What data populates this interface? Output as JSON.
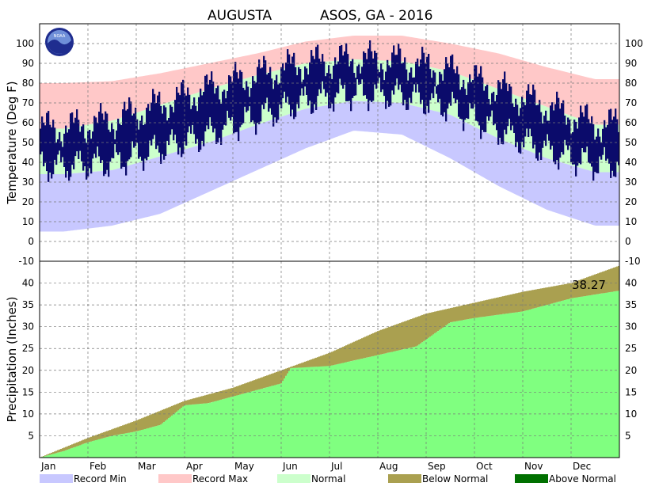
{
  "chart_data": [
    {
      "type": "area",
      "title_station": "AUGUSTA",
      "title_network": "ASOS, GA - 2016",
      "ylabel": "Temperature (Deg F)",
      "ylim": [
        -10,
        110
      ],
      "yticks": [
        -10,
        0,
        10,
        20,
        30,
        40,
        50,
        60,
        70,
        80,
        90,
        100
      ],
      "months": [
        "Jan",
        "Feb",
        "Mar",
        "Apr",
        "May",
        "Jun",
        "Jul",
        "Aug",
        "Sep",
        "Oct",
        "Nov",
        "Dec"
      ],
      "series": [
        {
          "name": "Record Max",
          "color": "#ffc8c8",
          "values": [
            80,
            81,
            85,
            90,
            95,
            101,
            104,
            104,
            100,
            95,
            88,
            82
          ]
        },
        {
          "name": "Normal",
          "color": "#ccffcc",
          "high": [
            57,
            61,
            69,
            77,
            84,
            90,
            92,
            91,
            86,
            77,
            68,
            59
          ],
          "low": [
            34,
            36,
            43,
            50,
            59,
            67,
            71,
            70,
            64,
            52,
            42,
            35
          ]
        },
        {
          "name": "Record Min",
          "color": "#c8c8ff",
          "values": [
            5,
            8,
            14,
            25,
            36,
            47,
            56,
            54,
            42,
            28,
            16,
            8
          ]
        }
      ],
      "observed_color": "#0b0b6b"
    },
    {
      "type": "area",
      "ylabel": "Precipitation (Inches)",
      "ylim": [
        0,
        45
      ],
      "yticks": [
        5,
        10,
        15,
        20,
        25,
        30,
        35,
        40
      ],
      "final_total_label": "38.27",
      "normal_cumulative": {
        "x": [
          0,
          1,
          2,
          3,
          4,
          5,
          6,
          7,
          8,
          9,
          10,
          11,
          12
        ],
        "values": [
          0,
          4.5,
          8.5,
          13,
          16,
          20,
          24,
          29,
          33,
          35.5,
          38,
          40,
          44
        ]
      },
      "observed_cumulative": {
        "x": [
          0,
          0.5,
          1,
          1.5,
          2,
          2.5,
          3,
          3.5,
          4,
          5,
          5.2,
          6,
          7,
          7.8,
          8.5,
          9,
          10,
          11,
          12
        ],
        "values": [
          0,
          1.5,
          3.5,
          5,
          6,
          7.5,
          12,
          12.5,
          14,
          17,
          20.5,
          21,
          23.5,
          25.5,
          31,
          32,
          33.5,
          36.5,
          38.27
        ]
      },
      "colors": {
        "observed": "#80ff80",
        "below_normal": "#aaa050",
        "above_normal": "#007000"
      }
    }
  ],
  "legend": [
    {
      "label": "Record Min",
      "color": "#c8c8ff"
    },
    {
      "label": "Record Max",
      "color": "#ffc8c8"
    },
    {
      "label": "Normal",
      "color": "#ccffcc"
    },
    {
      "label": "Below Normal",
      "color": "#aaa050"
    },
    {
      "label": "Above Normal",
      "color": "#007000"
    }
  ],
  "logo_text": "NOAA"
}
